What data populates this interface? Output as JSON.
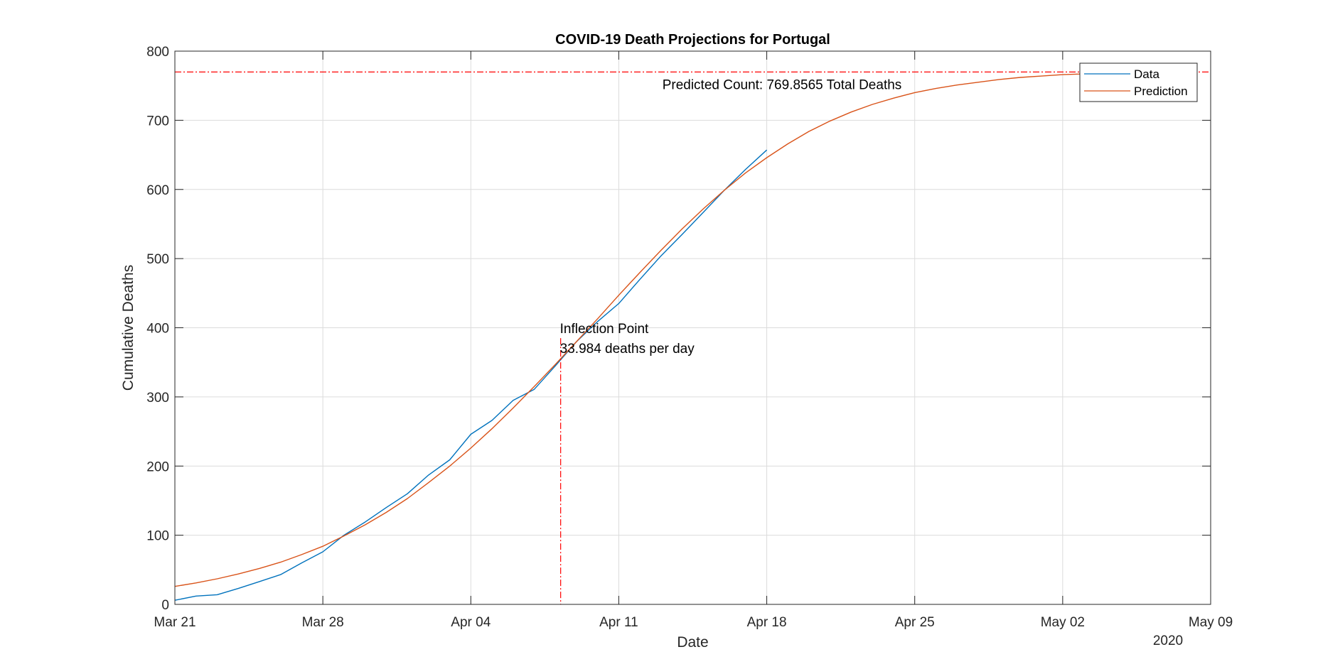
{
  "chart_data": {
    "type": "line",
    "title": "COVID-19 Death Projections for Portugal",
    "xlabel": "Date",
    "ylabel": "Cumulative Deaths",
    "x_range": [
      "2020-03-21",
      "2020-05-09"
    ],
    "ylim": [
      0,
      800
    ],
    "grid": true,
    "legend_position": "top-right",
    "x_ticks": [
      {
        "date": "2020-03-21",
        "label": "Mar 21"
      },
      {
        "date": "2020-03-28",
        "label": "Mar 28"
      },
      {
        "date": "2020-04-04",
        "label": "Apr 04"
      },
      {
        "date": "2020-04-11",
        "label": "Apr 11"
      },
      {
        "date": "2020-04-18",
        "label": "Apr 18"
      },
      {
        "date": "2020-04-25",
        "label": "Apr 25"
      },
      {
        "date": "2020-05-02",
        "label": "May 02"
      },
      {
        "date": "2020-05-09",
        "label": "May 09"
      }
    ],
    "x_year_label": "2020",
    "y_ticks": [
      0,
      100,
      200,
      300,
      400,
      500,
      600,
      700,
      800
    ],
    "series": [
      {
        "name": "Data",
        "color": "#0072BD",
        "x": [
          "2020-03-21",
          "2020-03-22",
          "2020-03-23",
          "2020-03-24",
          "2020-03-25",
          "2020-03-26",
          "2020-03-27",
          "2020-03-28",
          "2020-03-29",
          "2020-03-30",
          "2020-03-31",
          "2020-04-01",
          "2020-04-02",
          "2020-04-03",
          "2020-04-04",
          "2020-04-05",
          "2020-04-06",
          "2020-04-07",
          "2020-04-08",
          "2020-04-09",
          "2020-04-10",
          "2020-04-11",
          "2020-04-12",
          "2020-04-13",
          "2020-04-14",
          "2020-04-15",
          "2020-04-16",
          "2020-04-17",
          "2020-04-18"
        ],
        "y": [
          6,
          12,
          14,
          23,
          33,
          43,
          60,
          76,
          100,
          119,
          140,
          160,
          187,
          209,
          246,
          266,
          295,
          311,
          345,
          380,
          409,
          435,
          470,
          504,
          535,
          567,
          599,
          629,
          657
        ]
      },
      {
        "name": "Prediction",
        "color": "#D95319",
        "x": [
          "2020-03-21",
          "2020-03-22",
          "2020-03-23",
          "2020-03-24",
          "2020-03-25",
          "2020-03-26",
          "2020-03-27",
          "2020-03-28",
          "2020-03-29",
          "2020-03-30",
          "2020-03-31",
          "2020-04-01",
          "2020-04-02",
          "2020-04-03",
          "2020-04-04",
          "2020-04-05",
          "2020-04-06",
          "2020-04-07",
          "2020-04-08",
          "2020-04-09",
          "2020-04-10",
          "2020-04-11",
          "2020-04-12",
          "2020-04-13",
          "2020-04-14",
          "2020-04-15",
          "2020-04-16",
          "2020-04-17",
          "2020-04-18",
          "2020-04-19",
          "2020-04-20",
          "2020-04-21",
          "2020-04-22",
          "2020-04-23",
          "2020-04-24",
          "2020-04-25",
          "2020-04-26",
          "2020-04-27",
          "2020-04-28",
          "2020-04-29",
          "2020-04-30",
          "2020-05-01",
          "2020-05-02",
          "2020-05-03",
          "2020-05-04"
        ],
        "y": [
          26,
          31,
          37,
          44,
          52,
          61,
          72,
          84,
          99,
          115,
          133,
          153,
          176,
          200,
          226,
          254,
          284,
          315,
          347,
          380,
          413,
          447,
          480,
          512,
          543,
          572,
          599,
          624,
          646,
          666,
          684,
          699,
          712,
          723,
          732,
          740,
          746,
          751,
          755,
          759,
          762,
          764,
          766,
          767,
          768
        ]
      }
    ],
    "reference_lines": {
      "predicted_total": 769.8565,
      "inflection_date": "2020-04-08T06:00",
      "color": "#FF0000"
    },
    "annotations": {
      "predicted_count": "Predicted Count: 769.8565 Total Deaths",
      "inflection_title": "Inflection Point",
      "inflection_rate": "33.984 deaths per day"
    }
  }
}
